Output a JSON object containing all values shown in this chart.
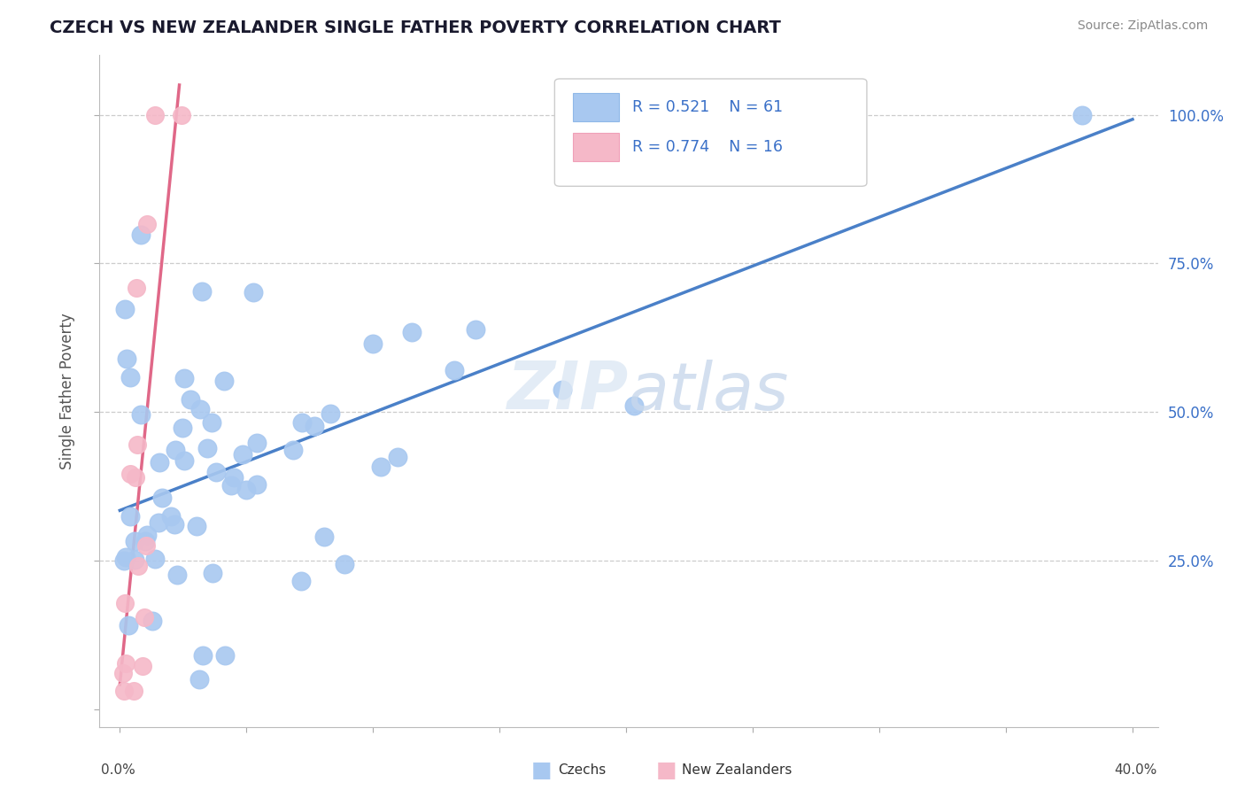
{
  "title": "CZECH VS NEW ZEALANDER SINGLE FATHER POVERTY CORRELATION CHART",
  "source": "Source: ZipAtlas.com",
  "ylabel": "Single Father Poverty",
  "blue_color": "#a8c8f0",
  "pink_color": "#f5b8c8",
  "blue_line_color": "#4a80c8",
  "pink_line_color": "#e06888",
  "legend_text_color": "#3a70c8",
  "r_czech": "0.521",
  "n_czech": "61",
  "r_nz": "0.774",
  "n_nz": "16",
  "x_min": 0.0,
  "x_max": 0.4,
  "y_min": 0.0,
  "y_max": 1.0
}
